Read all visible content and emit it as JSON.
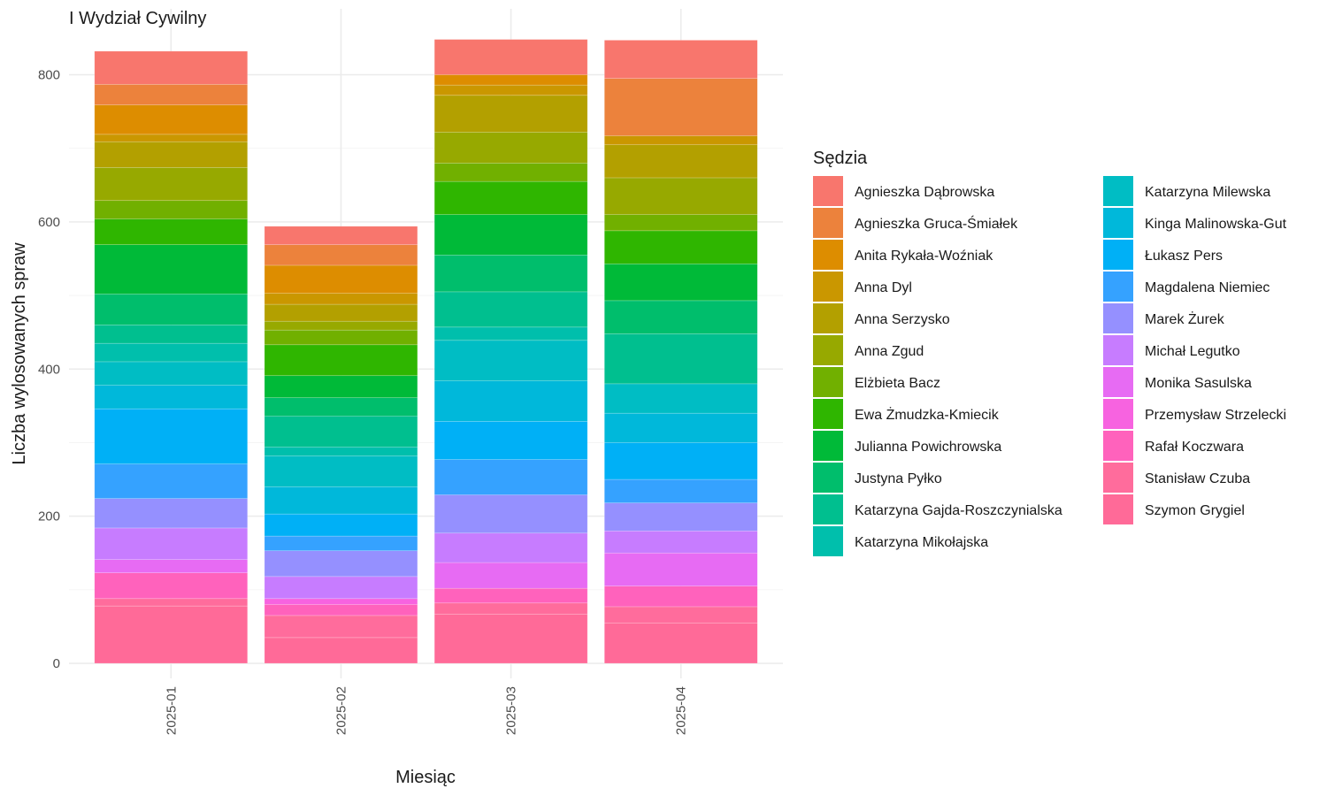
{
  "chart_data": {
    "type": "bar",
    "stacked": true,
    "title": "I Wydział Cywilny",
    "xlabel": "Miesiąc",
    "ylabel": "Liczba wylosowanych spraw",
    "categories": [
      "2025-01",
      "2025-02",
      "2025-03",
      "2025-04"
    ],
    "ylim": [
      0,
      845
    ],
    "yticks": [
      0,
      200,
      400,
      600,
      800
    ],
    "grid": true,
    "legend_title": "Sędzia",
    "legend_position": "right",
    "series": [
      {
        "name": "Agnieszka Dąbrowska",
        "color": "#F8766D",
        "values": [
          45,
          25,
          48,
          52
        ]
      },
      {
        "name": "Agnieszka Gruca-Śmiałek",
        "color": "#EC823C",
        "values": [
          28,
          28,
          0,
          78
        ]
      },
      {
        "name": "Anita Rykała-Woźniak",
        "color": "#DD8D00",
        "values": [
          40,
          38,
          14,
          0
        ]
      },
      {
        "name": "Anna Dyl",
        "color": "#CA9700",
        "values": [
          10,
          15,
          14,
          12
        ]
      },
      {
        "name": "Anna Serzysko",
        "color": "#B3A000",
        "values": [
          35,
          23,
          50,
          45
        ]
      },
      {
        "name": "Anna Zgud",
        "color": "#97A900",
        "values": [
          45,
          12,
          42,
          50
        ]
      },
      {
        "name": "Elżbieta Bacz",
        "color": "#71B000",
        "values": [
          25,
          20,
          25,
          22
        ]
      },
      {
        "name": "Ewa Żmudzka-Kmiecik",
        "color": "#2FB600",
        "values": [
          35,
          42,
          45,
          45
        ]
      },
      {
        "name": "Julianna Powichrowska",
        "color": "#00BA38",
        "values": [
          67,
          30,
          55,
          50
        ]
      },
      {
        "name": "Justyna Pyłko",
        "color": "#00BE6C",
        "values": [
          42,
          25,
          50,
          45
        ]
      },
      {
        "name": "Katarzyna Gajda-Roszczynialska",
        "color": "#00BF8F",
        "values": [
          25,
          42,
          48,
          68
        ]
      },
      {
        "name": "Katarzyna Mikołajska",
        "color": "#00BFAC",
        "values": [
          25,
          12,
          18,
          0
        ]
      },
      {
        "name": "Katarzyna Milewska",
        "color": "#00BDC4",
        "values": [
          32,
          42,
          55,
          40
        ]
      },
      {
        "name": "Kinga Malinowska-Gut",
        "color": "#00B8DA",
        "values": [
          32,
          37,
          55,
          40
        ]
      },
      {
        "name": "Łukasz Pers",
        "color": "#00B0F6",
        "values": [
          75,
          30,
          52,
          50
        ]
      },
      {
        "name": "Magdalena Niemiec",
        "color": "#35A2FF",
        "values": [
          47,
          20,
          48,
          32
        ]
      },
      {
        "name": "Marek Żurek",
        "color": "#9590FF",
        "values": [
          40,
          35,
          52,
          38
        ]
      },
      {
        "name": "Michał Legutko",
        "color": "#C77CFF",
        "values": [
          43,
          30,
          40,
          30
        ]
      },
      {
        "name": "Monika Sasulska",
        "color": "#E76BF3",
        "values": [
          18,
          0,
          35,
          45
        ]
      },
      {
        "name": "Przemysław Strzelecki",
        "color": "#F763E0",
        "values": [
          0,
          8,
          0,
          0
        ]
      },
      {
        "name": "Rafał Koczwara",
        "color": "#FF62BC",
        "values": [
          35,
          15,
          20,
          28
        ]
      },
      {
        "name": "Stanisław Czuba",
        "color": "#FF6C9C",
        "values": [
          10,
          30,
          15,
          22
        ]
      },
      {
        "name": "Szymon Grygiel",
        "color": "#FF6A98",
        "values": [
          78,
          35,
          67,
          55
        ]
      }
    ]
  }
}
